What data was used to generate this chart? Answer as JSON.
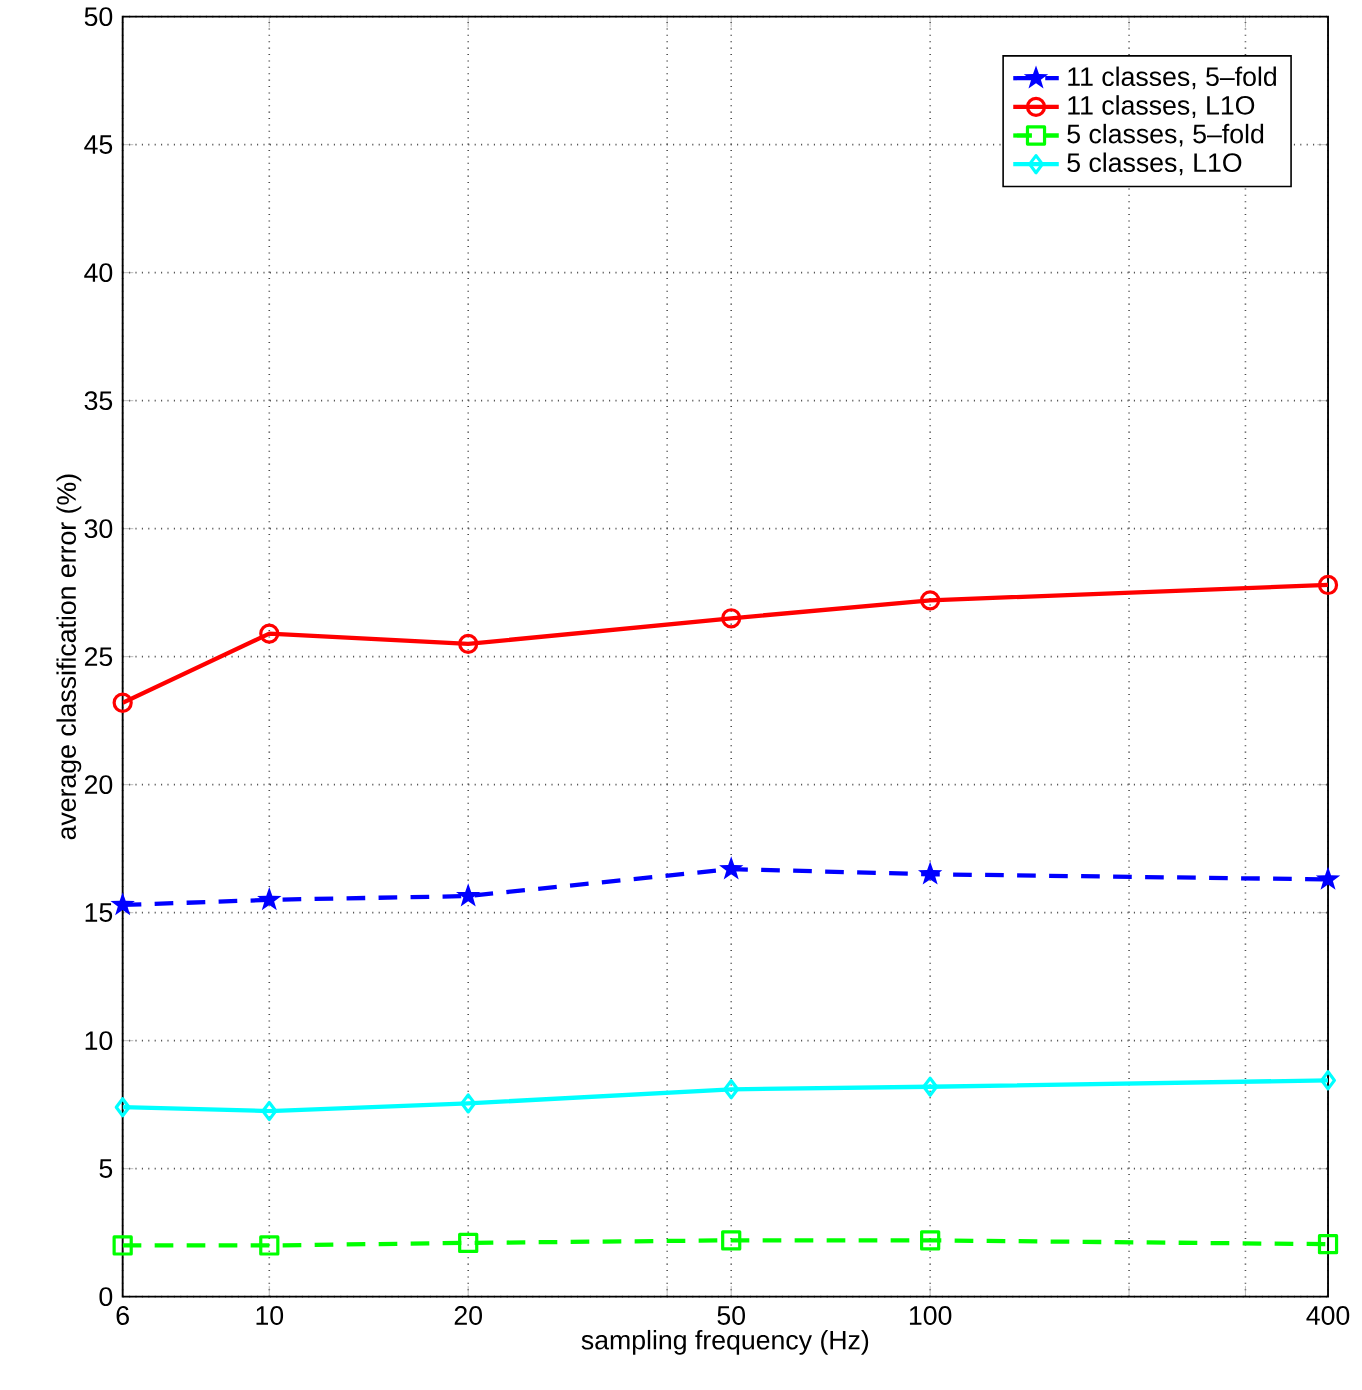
{
  "chart_data": {
    "type": "line",
    "xlabel": "sampling frequency (Hz)",
    "ylabel": "average classification error (%)",
    "x": [
      6,
      10,
      20,
      50,
      100,
      400
    ],
    "series": [
      {
        "name": "11 classes, 5–fold",
        "color": "#0000ff",
        "marker": "star",
        "line_style": "dashed",
        "values": [
          15.3,
          15.5,
          15.65,
          16.7,
          16.5,
          16.3
        ]
      },
      {
        "name": "11 classes, L1O",
        "color": "#ff0000",
        "marker": "circle",
        "line_style": "solid",
        "values": [
          23.2,
          25.9,
          25.5,
          26.5,
          27.2,
          27.8
        ]
      },
      {
        "name": "5 classes, 5–fold",
        "color": "#00ff00",
        "marker": "square",
        "line_style": "dashed",
        "values": [
          2.0,
          2.0,
          2.1,
          2.2,
          2.2,
          2.05
        ]
      },
      {
        "name": "5 classes, L1O",
        "color": "#00ffff",
        "marker": "diamond",
        "line_style": "solid",
        "values": [
          7.4,
          7.25,
          7.55,
          8.1,
          8.2,
          8.45
        ]
      }
    ],
    "log": "x",
    "xlim": [
      6,
      400
    ],
    "xticks": [
      6,
      10,
      20,
      {
        "value": 40,
        "label": null
      },
      50,
      100,
      {
        "value": 200,
        "label": null
      },
      {
        "value": 300,
        "label": null
      },
      400
    ],
    "ylim": [
      0,
      50
    ],
    "yticks": [
      0,
      5,
      10,
      15,
      20,
      25,
      30,
      35,
      40,
      45,
      50
    ],
    "grid": true,
    "legend": "top right"
  }
}
